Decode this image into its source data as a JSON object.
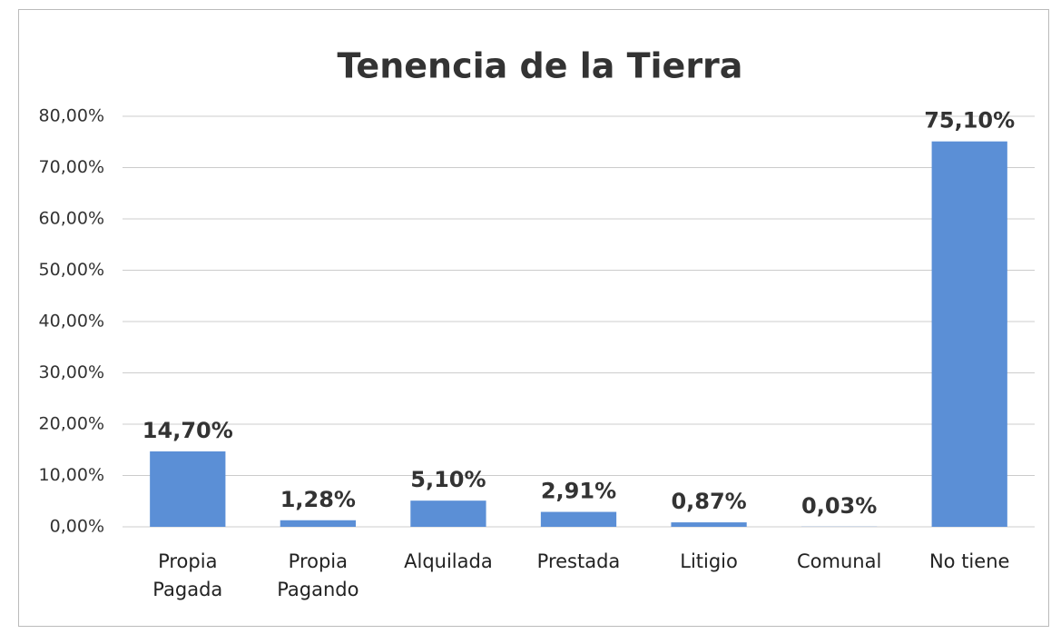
{
  "chart_data": {
    "type": "bar",
    "title": "Tenencia de la Tierra",
    "categories": [
      "Propia Pagada",
      "Propia Pagando",
      "Alquilada",
      "Prestada",
      "Litigio",
      "Comunal",
      "No tiene"
    ],
    "values": [
      14.7,
      1.28,
      5.1,
      2.91,
      0.87,
      0.03,
      75.1
    ],
    "value_labels": [
      "14,70%",
      "1,28%",
      "5,10%",
      "2,91%",
      "0,87%",
      "0,03%",
      "75,10%"
    ],
    "color": "#5b8fd6",
    "ylim": [
      0,
      80
    ],
    "yticks": [
      {
        "value": 0,
        "label": "0,00%"
      },
      {
        "value": 10,
        "label": "10,00%"
      },
      {
        "value": 20,
        "label": "20,00%"
      },
      {
        "value": 30,
        "label": "30,00%"
      },
      {
        "value": 40,
        "label": "40,00%"
      },
      {
        "value": 50,
        "label": "50,00%"
      },
      {
        "value": 60,
        "label": "60,00%"
      },
      {
        "value": 70,
        "label": "70,00%"
      },
      {
        "value": 80,
        "label": "80,00%"
      }
    ],
    "grid": true
  }
}
